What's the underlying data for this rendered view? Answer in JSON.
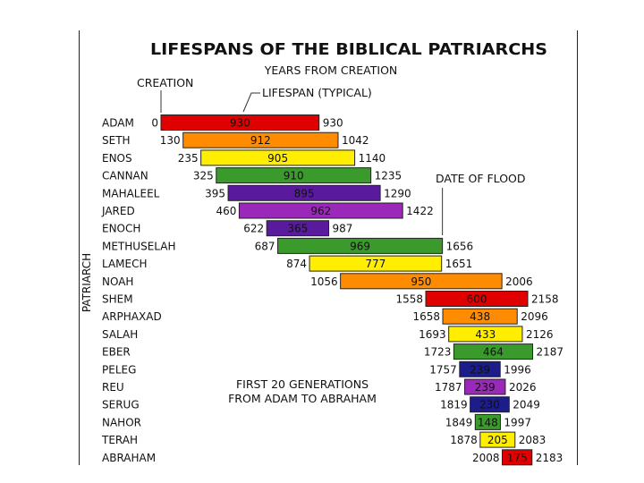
{
  "chart_data": {
    "type": "bar",
    "title": "LIFESPANS OF THE BIBLICAL PATRIARCHS",
    "subtitle": "YEARS FROM CREATION",
    "ylabel": "PATRIARCH",
    "annotations": {
      "creation": "CREATION",
      "lifespan": "LIFESPAN (TYPICAL)",
      "flood": "DATE OF FLOOD",
      "footnote_line1": "FIRST 20 GENERATIONS",
      "footnote_line2": "FROM ADAM TO ABRAHAM"
    },
    "flood_year": 1656,
    "colors": [
      "#e00000",
      "#ff8c00",
      "#ffee00",
      "#3a9a2c",
      "#5a1a9e",
      "#9a28b8",
      "#1c1c8a"
    ],
    "bars": [
      {
        "name": "ADAM",
        "start": "0",
        "end": "930",
        "span": "930",
        "color": "#e00000"
      },
      {
        "name": "SETH",
        "start": "130",
        "end": "1042",
        "span": "912",
        "color": "#ff8c00"
      },
      {
        "name": "ENOS",
        "start": "235",
        "end": "1140",
        "span": "905",
        "color": "#ffee00"
      },
      {
        "name": "CANNAN",
        "start": "325",
        "end": "1235",
        "span": "910",
        "color": "#3a9a2c"
      },
      {
        "name": "MAHALEEL",
        "start": "395",
        "end": "1290",
        "span": "895",
        "color": "#5a1a9e"
      },
      {
        "name": "JARED",
        "start": "460",
        "end": "1422",
        "span": "962",
        "color": "#9a28b8"
      },
      {
        "name": "ENOCH",
        "start": "622",
        "end": "987",
        "span": "365",
        "color": "#5a1a9e"
      },
      {
        "name": "METHUSELAH",
        "start": "687",
        "end": "1656",
        "span": "969",
        "color": "#3a9a2c"
      },
      {
        "name": "LAMECH",
        "start": "874",
        "end": "1651",
        "span": "777",
        "color": "#ffee00"
      },
      {
        "name": "NOAH",
        "start": "1056",
        "end": "2006",
        "span": "950",
        "color": "#ff8c00"
      },
      {
        "name": "SHEM",
        "start": "1558",
        "end": "2158",
        "span": "600",
        "color": "#e00000"
      },
      {
        "name": "ARPHAXAD",
        "start": "1658",
        "end": "2096",
        "span": "438",
        "color": "#ff8c00"
      },
      {
        "name": "SALAH",
        "start": "1693",
        "end": "2126",
        "span": "433",
        "color": "#ffee00"
      },
      {
        "name": "EBER",
        "start": "1723",
        "end": "2187",
        "span": "464",
        "color": "#3a9a2c"
      },
      {
        "name": "PELEG",
        "start": "1757",
        "end": "1996",
        "span": "239",
        "color": "#1c1c8a"
      },
      {
        "name": "REU",
        "start": "1787",
        "end": "2026",
        "span": "239",
        "color": "#9a28b8"
      },
      {
        "name": "SERUG",
        "start": "1819",
        "end": "2049",
        "span": "230",
        "color": "#1c1c8a"
      },
      {
        "name": "NAHOR",
        "start": "1849",
        "end": "1997",
        "span": "148",
        "color": "#3a9a2c"
      },
      {
        "name": "TERAH",
        "start": "1878",
        "end": "2083",
        "span": "205",
        "color": "#ffee00"
      },
      {
        "name": "ABRAHAM",
        "start": "2008",
        "end": "2183",
        "span": "175",
        "color": "#e00000"
      }
    ]
  }
}
